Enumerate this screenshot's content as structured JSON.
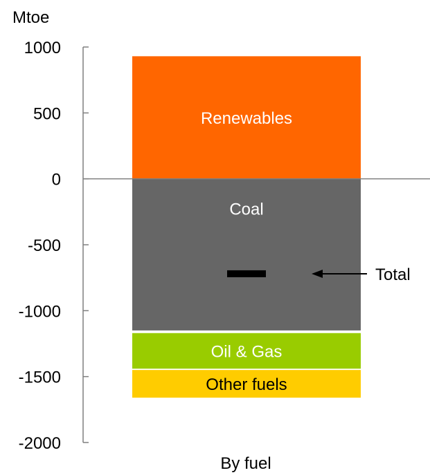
{
  "chart_data": {
    "type": "bar",
    "stacked": true,
    "ylabel": "Mtoe",
    "xlabel": "By fuel",
    "ylim": [
      -2000,
      1000
    ],
    "yticks": [
      1000,
      500,
      0,
      -500,
      -1000,
      -1500,
      -2000
    ],
    "segments": [
      {
        "name": "Renewables",
        "from": 0,
        "to": 930,
        "color": "#ff6600",
        "label_color": "#ffffff"
      },
      {
        "name": "Coal",
        "from": 0,
        "to": -1150,
        "color": "#666666",
        "label_color": "#ffffff"
      },
      {
        "name": "Oil & Gas",
        "from": -1170,
        "to": -1440,
        "color": "#99cc00",
        "label_color": "#ffffff"
      },
      {
        "name": "Other fuels",
        "from": -1450,
        "to": -1660,
        "color": "#ffcc00",
        "label_color": "#000000"
      }
    ],
    "total": {
      "label": "Total",
      "value": -720
    }
  }
}
